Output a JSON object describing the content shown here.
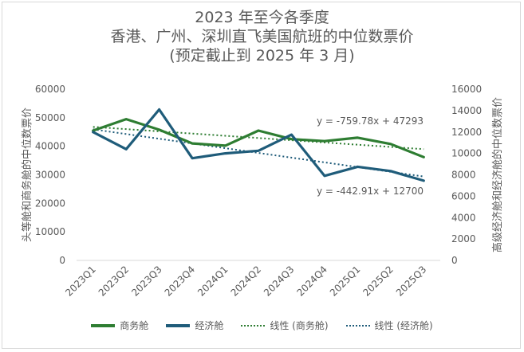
{
  "chart_data": {
    "type": "line",
    "title_lines": [
      "2023 年至今各季度",
      "香港、广州、深圳直飞美国航班的中位数票价",
      "(预定截止到 2025 年 3 月)"
    ],
    "categories": [
      "2023Q1",
      "2023Q2",
      "2023Q3",
      "2023Q4",
      "2024Q1",
      "2024Q2",
      "2024Q3",
      "2024Q4",
      "2025Q1",
      "2025Q2",
      "2025Q3"
    ],
    "left_axis": {
      "label": "头等舱和商务舱的中位数票价",
      "ylim": [
        0,
        60000
      ],
      "ticks": [
        "0",
        "10000",
        "20000",
        "30000",
        "40000",
        "50000",
        "60000"
      ]
    },
    "right_axis": {
      "label": "高级经济舱和经济舱的中位数票价",
      "ylim": [
        0,
        16000
      ],
      "ticks": [
        "0",
        "2000",
        "4000",
        "6000",
        "8000",
        "10000",
        "12000",
        "14000",
        "16000"
      ]
    },
    "series": [
      {
        "name": "商务舱",
        "axis": "left",
        "color": "#2e7d32",
        "values": [
          45500,
          49500,
          45800,
          41000,
          40200,
          45500,
          42500,
          41800,
          43000,
          40800,
          36200
        ]
      },
      {
        "name": "经济舱",
        "axis": "right",
        "color": "#1f5c7a",
        "values": [
          12000,
          10400,
          14100,
          9550,
          10000,
          10250,
          11750,
          7900,
          8750,
          8350,
          7450
        ]
      }
    ],
    "trendlines": [
      {
        "name": "线性 (商务舱)",
        "color": "#2e7d32",
        "equation": "y = -759.78x + 47293"
      },
      {
        "name": "线性 (经济舱)",
        "color": "#1f5c7a",
        "equation": "y = -442.91x + 12700"
      }
    ],
    "legend_position": "bottom",
    "grid": false
  }
}
